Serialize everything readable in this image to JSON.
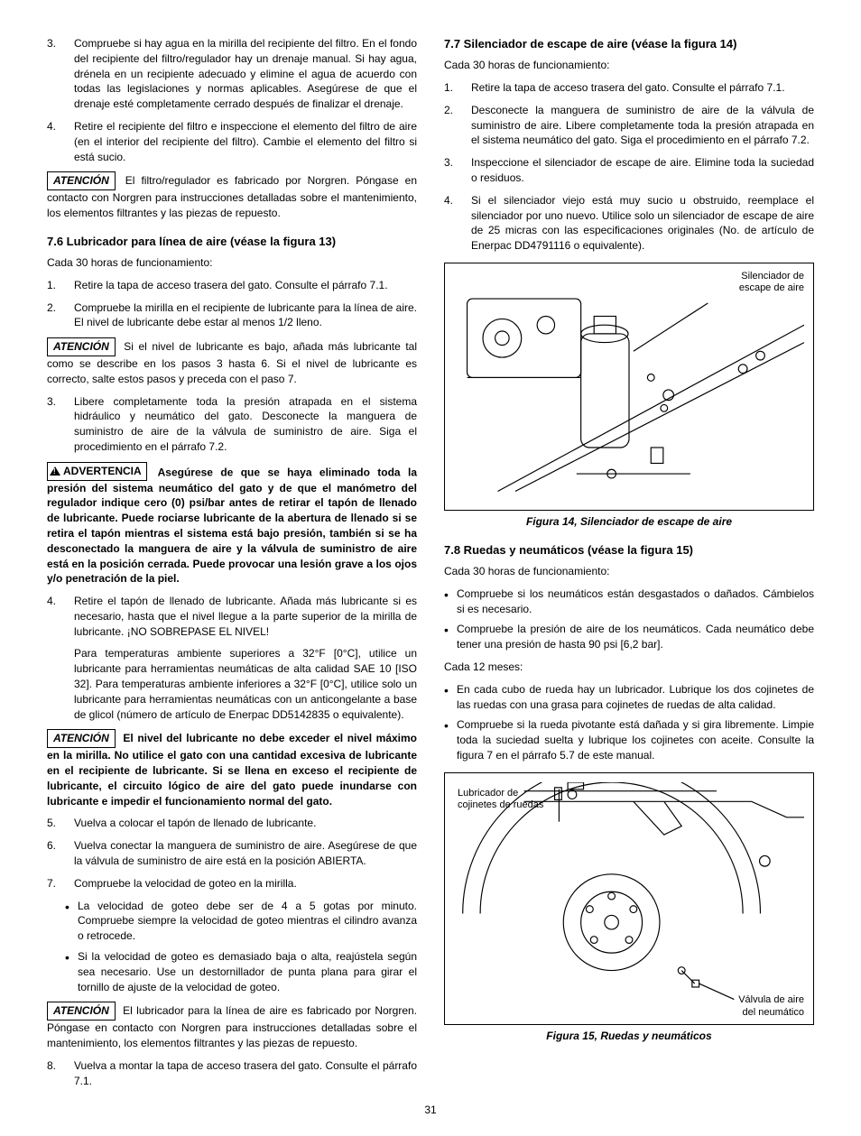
{
  "left": {
    "list_a": [
      {
        "n": "3.",
        "t": "Compruebe si hay agua en la mirilla del recipiente del filtro. En el fondo del recipiente del filtro/regulador hay un drenaje manual. Si hay agua, drénela en un recipiente adecuado y elimine el agua de acuerdo con todas las legislaciones y normas aplicables. Asegúrese de que el drenaje esté completamente cerrado después de finalizar el drenaje."
      },
      {
        "n": "4.",
        "t": "Retire el recipiente del filtro e inspeccione el elemento del filtro de aire (en el interior del recipiente del filtro). Cambie el elemento del filtro si está sucio."
      }
    ],
    "atencion1_label": "ATENCIÓN",
    "atencion1": " El filtro/regulador es fabricado por Norgren. Póngase en contacto con Norgren para instrucciones detalladas sobre el mantenimiento, los elementos filtrantes y las piezas de repuesto.",
    "h76": "7.6  Lubricador para línea de aire (véase la figura 13)",
    "h76_sub": "Cada 30 horas de funcionamiento:",
    "list_b": [
      {
        "n": "1.",
        "t": "Retire la tapa de acceso trasera del gato. Consulte el párrafo 7.1."
      },
      {
        "n": "2.",
        "t": "Compruebe la mirilla en el recipiente de lubricante para la línea de aire. El nivel de lubricante debe estar al menos 1/2 lleno."
      }
    ],
    "atencion2_label": "ATENCIÓN",
    "atencion2": " Si el nivel de lubricante es bajo, añada más lubricante tal como se describe en los pasos 3 hasta 6. Si el nivel de lubricante es correcto, salte estos pasos y preceda con el paso 7.",
    "list_c": [
      {
        "n": "3.",
        "t": "Libere completamente toda la presión atrapada en el sistema hidráulico y neumático del gato. Desconecte la manguera de suministro de aire de la válvula de suministro de aire. Siga el procedimiento en el párrafo 7.2."
      }
    ],
    "adv_label": "ADVERTENCIA",
    "adv_text": " Asegúrese de que se haya eliminado toda la presión del sistema neumático del gato y de que el manómetro del regulador indique cero (0) psi/bar antes de retirar el tapón de llenado de lubricante. Puede rociarse lubricante de la abertura de llenado si se retira el tapón mientras el sistema está bajo presión, también si se ha desconectado la manguera de aire y la válvula de suministro de aire está en la posición cerrada. Puede provocar una lesión grave a los ojos y/o penetración de la piel.",
    "list_d": [
      {
        "n": "4.",
        "t": "Retire el tapón de llenado de lubricante. Añada más lubricante si es necesario, hasta que el nivel llegue a la parte superior de la mirilla de lubricante. ¡NO SOBREPASE EL NIVEL!"
      }
    ],
    "list_d_sub": "Para temperaturas ambiente superiores a 32°F [0°C], utilice un lubricante para herramientas neumáticas de alta calidad SAE 10 [ISO 32]. Para temperaturas ambiente inferiores a 32°F [0°C], utilice solo un lubricante para herramientas neumáticas con un anticongelante a base de glicol (número de artículo de Enerpac DD5142835 o equivalente).",
    "atencion3_label": "ATENCIÓN",
    "atencion3": " El nivel del lubricante no debe exceder el nivel máximo en la mirilla. No utilice el gato con una cantidad excesiva de lubricante en el recipiente de lubricante. Si se llena en exceso el recipiente de lubricante, el circuito lógico de aire del gato puede inundarse con lubricante e impedir el funcionamiento normal del gato.",
    "list_e": [
      {
        "n": "5.",
        "t": "Vuelva a colocar el tapón de llenado de lubricante."
      },
      {
        "n": "6.",
        "t": "Vuelva conectar la manguera de suministro de aire. Asegúrese de que la válvula de suministro de aire está en la posición ABIERTA."
      },
      {
        "n": "7.",
        "t": "Compruebe la velocidad de goteo en la mirilla."
      }
    ],
    "bullets_e": [
      "La velocidad de goteo debe ser de 4 a 5 gotas por minuto. Compruebe siempre la velocidad de goteo mientras el cilindro avanza o retrocede.",
      "Si la velocidad de goteo es demasiado baja o alta, reajústela según sea necesario. Use un destornillador de punta plana para girar el tornillo de ajuste de la velocidad de goteo."
    ],
    "atencion4_label": "ATENCIÓN",
    "atencion4": " El lubricador para la línea de aire es fabricado por Norgren. Póngase en contacto con Norgren para instrucciones detalladas sobre el mantenimiento, los elementos filtrantes y las piezas de repuesto.",
    "list_f": [
      {
        "n": "8.",
        "t": "Vuelva a montar la tapa de acceso trasera del gato. Consulte el párrafo 7.1."
      }
    ]
  },
  "right": {
    "h77": "7.7  Silenciador de escape de aire (véase la figura 14)",
    "h77_sub": "Cada 30 horas de funcionamiento:",
    "list_g": [
      {
        "n": "1.",
        "t": "Retire la tapa de acceso trasera del gato. Consulte el párrafo 7.1."
      },
      {
        "n": "2.",
        "t": "Desconecte la manguera de suministro de aire de la válvula de suministro de aire. Libere completamente toda la presión atrapada en el sistema neumático del gato. Siga el procedimiento en el párrafo 7.2."
      },
      {
        "n": "3.",
        "t": "Inspeccione el silenciador de escape de aire. Elimine toda la suciedad o residuos."
      },
      {
        "n": "4.",
        "t": "Si el silenciador viejo está muy sucio u obstruido, reemplace el silenciador por uno nuevo. Utilice solo un silenciador de escape de aire de 25 micras con las especificaciones originales (No. de artículo de Enerpac DD4791116 o equivalente)."
      }
    ],
    "fig14_label": "Silenciador de\nescape de aire",
    "fig14_caption": "Figura 14, Silenciador de escape de aire",
    "h78": "7.8  Ruedas y neumáticos (véase la figura 15)",
    "h78_sub": "Cada 30 horas de funcionamiento:",
    "bullets_h": [
      "Compruebe si los neumáticos están desgastados o dañados. Cámbielos si es necesario.",
      "Compruebe la presión de aire de los neumáticos. Cada neumático debe tener una presión de hasta 90 psi [6,2 bar]."
    ],
    "h78_sub2": "Cada 12 meses:",
    "bullets_i": [
      "En cada cubo de rueda hay un lubricador. Lubrique los dos cojinetes de las ruedas con una grasa para cojinetes de ruedas de alta calidad.",
      "Compruebe si la rueda pivotante está dañada y si gira libremente. Limpie toda la suciedad suelta y lubrique los cojinetes con aceite. Consulte la figura 7 en el párrafo 5.7 de este manual."
    ],
    "fig15_label1": "Lubricador de\ncojinetes de ruedas",
    "fig15_label2": "Válvula de aire\ndel neumático",
    "fig15_caption": "Figura 15, Ruedas y neumáticos"
  },
  "page": "31"
}
